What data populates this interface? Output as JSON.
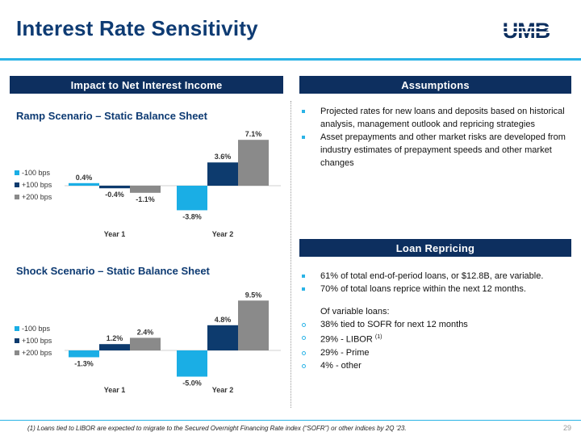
{
  "title": "Interest Rate Sensitivity",
  "logo_text": "UMB",
  "colors": {
    "accent": "#2ab3e6",
    "navy": "#0d2f5f",
    "dark_blue": "#0e3b73",
    "series_100_down": "#1aaee5",
    "series_100_up": "#0d3b6e",
    "series_200_up": "#8a8a8a"
  },
  "left_header": "Impact to Net Interest Income",
  "assumptions": {
    "header": "Assumptions",
    "bullets": [
      "Projected rates for new loans and deposits based on historical analysis, management outlook and repricing strategies",
      "Asset prepayments and other market risks are developed from industry estimates of prepayment speeds and other market changes"
    ]
  },
  "loan_repricing": {
    "header": "Loan Repricing",
    "bullet1": "61% of total end-of-period loans, or $12.8B, are variable.",
    "bullet2": "70% of total loans reprice within the next 12 months.",
    "sub_intro": "Of variable loans:",
    "sub_items": {
      "a": "38% tied to SOFR for next 12 months",
      "b": "29% - LIBOR",
      "b_sup": "(1)",
      "c": "29% - Prime",
      "d": "4% - other"
    }
  },
  "chart_data": [
    {
      "type": "bar",
      "title": "Ramp Scenario – Static Balance Sheet",
      "categories": [
        "Year 1",
        "Year 2"
      ],
      "series": [
        {
          "name": "-100 bps",
          "values": [
            0.4,
            -3.8
          ],
          "labels": [
            "0.4%",
            "-3.8%"
          ],
          "color": "#1aaee5"
        },
        {
          "name": "+100 bps",
          "values": [
            -0.4,
            3.6
          ],
          "labels": [
            "-0.4%",
            "3.6%"
          ],
          "color": "#0d3b6e"
        },
        {
          "name": "+200 bps",
          "values": [
            -1.1,
            7.1
          ],
          "labels": [
            "-1.1%",
            "7.1%"
          ],
          "color": "#8a8a8a"
        }
      ],
      "legend": "left",
      "grid": false
    },
    {
      "type": "bar",
      "title": "Shock Scenario – Static Balance Sheet",
      "categories": [
        "Year 1",
        "Year 2"
      ],
      "series": [
        {
          "name": "-100 bps",
          "values": [
            -1.3,
            -5.0
          ],
          "labels": [
            "-1.3%",
            "-5.0%"
          ],
          "color": "#1aaee5"
        },
        {
          "name": "+100 bps",
          "values": [
            1.2,
            4.8
          ],
          "labels": [
            "1.2%",
            "4.8%"
          ],
          "color": "#0d3b6e"
        },
        {
          "name": "+200 bps",
          "values": [
            2.4,
            9.5
          ],
          "labels": [
            "2.4%",
            "9.5%"
          ],
          "color": "#8a8a8a"
        }
      ],
      "legend": "left",
      "grid": false
    }
  ],
  "footnote": "(1) Loans tied to LIBOR are expected to migrate to the Secured Overnight Financing Rate index (“SOFR”) or other indices by 2Q ’23.",
  "page_number": "29"
}
